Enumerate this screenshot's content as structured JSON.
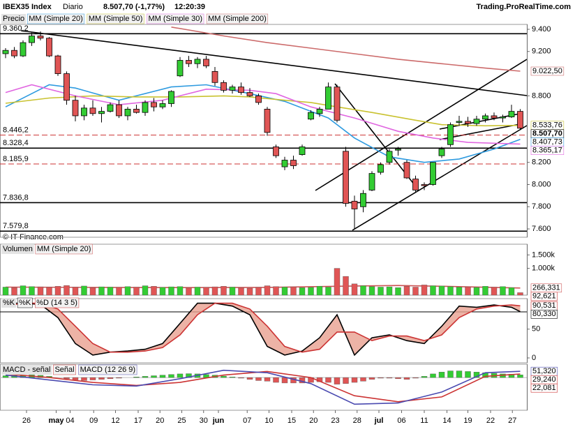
{
  "header": {
    "symbol": "IBEX35 Index",
    "period": "Diario",
    "last": "8.507,70 (-1,77%)",
    "time": "12:20:39",
    "source": "Trading.ProRealTime.com",
    "copyright": "© IT-Finance.com"
  },
  "chart_data": [
    {
      "type": "candlestick",
      "name": "Precio",
      "xlim": [
        -0.64,
        59.76
      ],
      "ylim": [
        7525,
        9444
      ],
      "up_color": "#33cc33",
      "down_color": "#e05555",
      "open": [
        9180,
        9210,
        9160,
        9280,
        9340,
        9320,
        9160,
        9000,
        8760,
        8620,
        8690,
        8640,
        8660,
        8720,
        8620,
        8680,
        8650,
        8740,
        8700,
        8730,
        8980,
        9120,
        9090,
        9130,
        9020,
        8920,
        8850,
        8880,
        8830,
        8800,
        8680,
        8340,
        8160,
        8220,
        8270,
        8590,
        8640,
        8680,
        8880,
        8300,
        7850,
        7800,
        7950,
        8110,
        8200,
        8310,
        8200,
        8050,
        8000,
        8000,
        8260,
        8360,
        8560,
        8570,
        8550,
        8590,
        8620,
        8600,
        8610,
        8660
      ],
      "high": [
        9230,
        9240,
        9300,
        9370,
        9380,
        9330,
        9170,
        9020,
        8800,
        8720,
        8760,
        8700,
        8740,
        8760,
        8700,
        8720,
        8760,
        8780,
        8760,
        8850,
        9150,
        9160,
        9150,
        9160,
        9060,
        8940,
        8900,
        8920,
        8870,
        8820,
        8700,
        8360,
        8250,
        8260,
        8360,
        8670,
        8700,
        8920,
        8900,
        8340,
        7900,
        7950,
        8120,
        8200,
        8320,
        8340,
        8220,
        8080,
        8020,
        8200,
        8340,
        8560,
        8620,
        8610,
        8620,
        8640,
        8650,
        8630,
        8720,
        8680
      ],
      "low": [
        9140,
        9140,
        9150,
        9250,
        9300,
        9150,
        8980,
        8720,
        8570,
        8580,
        8620,
        8560,
        8650,
        8600,
        8580,
        8640,
        8620,
        8660,
        8680,
        8700,
        8970,
        9060,
        9050,
        9050,
        8890,
        8830,
        8820,
        8810,
        8790,
        8720,
        8440,
        8240,
        8130,
        8140,
        8260,
        8580,
        8610,
        8690,
        8560,
        7800,
        7600,
        7750,
        7940,
        8090,
        8180,
        8260,
        8050,
        7930,
        7950,
        7990,
        8240,
        8340,
        8530,
        8520,
        8530,
        8560,
        8580,
        8560,
        8600,
        8490
      ],
      "close": [
        9210,
        9160,
        9280,
        9340,
        9320,
        9160,
        9000,
        8760,
        8620,
        8690,
        8640,
        8660,
        8720,
        8620,
        8680,
        8650,
        8740,
        8700,
        8730,
        8840,
        9120,
        9090,
        9130,
        9070,
        8920,
        8850,
        8880,
        8830,
        8800,
        8740,
        8470,
        8260,
        8220,
        8170,
        8340,
        8650,
        8680,
        8880,
        8580,
        7830,
        7780,
        7920,
        8100,
        8180,
        8300,
        8320,
        8060,
        7950,
        7990,
        8200,
        8320,
        8540,
        8570,
        8550,
        8590,
        8620,
        8600,
        8610,
        8660,
        8507.7
      ],
      "close_label": "8.507,70",
      "series": [
        {
          "name": "MM (Simple 20)",
          "color": "#2f9be0",
          "x": [
            0,
            5,
            8,
            13,
            19,
            23,
            28,
            32,
            37,
            40,
            44,
            48,
            52,
            56,
            59
          ],
          "values": [
            8700,
            8900,
            8870,
            8760,
            8880,
            8900,
            8820,
            8750,
            8600,
            8420,
            8250,
            8200,
            8230,
            8320,
            8407.73
          ],
          "end_label": "8.407,73"
        },
        {
          "name": "MM (Simple 50)",
          "color": "#c9c230",
          "x": [
            0,
            5,
            10,
            15,
            20,
            25,
            28,
            32,
            35,
            38,
            42,
            47,
            50,
            55,
            59
          ],
          "values": [
            8733,
            8780,
            8800,
            8790,
            8790,
            8800,
            8790,
            8760,
            8740,
            8700,
            8650,
            8580,
            8540,
            8530,
            8533.76
          ],
          "end_label": "8.533,76"
        },
        {
          "name": "MM (Simple 30)",
          "color": "#e066e0",
          "x": [
            0,
            3,
            8,
            13,
            18,
            23,
            28,
            31,
            35,
            40,
            45,
            49,
            53,
            59
          ],
          "values": [
            8830,
            8900,
            8800,
            8720,
            8760,
            8860,
            8850,
            8820,
            8700,
            8600,
            8480,
            8420,
            8380,
            8365.17
          ],
          "end_label": "8.365,17"
        },
        {
          "name": "MM (Simple 200)",
          "color": "#cc6b6b",
          "x": [
            19,
            25,
            30,
            35,
            40,
            45,
            50,
            55,
            59
          ],
          "values": [
            9420,
            9340,
            9280,
            9230,
            9180,
            9130,
            9090,
            9050,
            9022.5
          ],
          "end_label": "9.022,50"
        }
      ],
      "levels": [
        {
          "value": 9360.2,
          "label": "9.360,2",
          "style": "solid",
          "color": "#000000"
        },
        {
          "value": 8446.2,
          "label": "8.446,2",
          "style": "dashed",
          "color": "#cc3333"
        },
        {
          "value": 8328.4,
          "label": "8.328,4",
          "style": "solid",
          "color": "#000000"
        },
        {
          "value": 8185.9,
          "label": "8.185,9",
          "style": "dashed",
          "color": "#cc3333"
        },
        {
          "value": 7836.8,
          "label": "7.836,8",
          "style": "solid",
          "color": "#000000"
        },
        {
          "value": 7579.8,
          "label": "7.579,8",
          "style": "solid",
          "color": "#000000"
        }
      ],
      "yticks": [
        {
          "value": 9400,
          "label": "9.400"
        },
        {
          "value": 9200,
          "label": "9.200"
        },
        {
          "value": 8800,
          "label": "8.800"
        },
        {
          "value": 8200,
          "label": "8.200"
        },
        {
          "value": 8000,
          "label": "8.000"
        },
        {
          "value": 7800,
          "label": "7.800"
        },
        {
          "value": 7600,
          "label": "7.600"
        }
      ]
    },
    {
      "type": "bar",
      "name": "Volumen",
      "xlim": [
        -0.64,
        59.76
      ],
      "ylim": [
        0,
        1900
      ],
      "values": [
        300,
        280,
        350,
        320,
        310,
        290,
        330,
        360,
        300,
        340,
        280,
        310,
        300,
        290,
        320,
        300,
        350,
        330,
        290,
        310,
        320,
        280,
        300,
        290,
        310,
        330,
        300,
        280,
        260,
        290,
        350,
        320,
        300,
        310,
        280,
        290,
        330,
        300,
        1000,
        700,
        420,
        350,
        320,
        300,
        310,
        280,
        330,
        300,
        380,
        350,
        340,
        320,
        300,
        310,
        290,
        330,
        300,
        320,
        280,
        92.621
      ],
      "last_label": "92,621",
      "series": [
        {
          "name": "MM (Simple 20)",
          "color": "#cc5555",
          "x": [
            0,
            10,
            20,
            30,
            38,
            45,
            50,
            59
          ],
          "values": [
            300,
            290,
            280,
            290,
            330,
            360,
            330,
            266.331
          ],
          "end_label": "266,331"
        }
      ],
      "yticks": [
        {
          "value": 1500,
          "label": "1.500k"
        },
        {
          "value": 1000,
          "label": "1.000k"
        }
      ]
    },
    {
      "type": "line",
      "name": "%K",
      "xlim": [
        -0.64,
        59.76
      ],
      "ylim": [
        -8.5,
        103
      ],
      "fill_between": "#e8a090",
      "series": [
        {
          "name": "%K",
          "color": "#000000",
          "x": [
            0,
            2,
            4,
            6,
            8,
            10,
            12,
            14,
            16,
            18,
            20,
            22,
            24,
            26,
            28,
            30,
            32,
            34,
            36,
            38,
            40,
            42,
            44,
            46,
            48,
            50,
            52,
            54,
            56,
            58,
            59
          ],
          "values": [
            95,
            95,
            93,
            70,
            25,
            5,
            10,
            12,
            15,
            25,
            60,
            95,
            95,
            90,
            75,
            20,
            5,
            12,
            35,
            75,
            5,
            35,
            40,
            30,
            25,
            55,
            90,
            88,
            92,
            88,
            80.33
          ],
          "end_label": "80,330"
        },
        {
          "name": "%D (14 3 5)",
          "color": "#cc3333",
          "x": [
            0,
            2,
            4,
            6,
            8,
            10,
            12,
            14,
            16,
            18,
            20,
            22,
            24,
            26,
            28,
            30,
            32,
            34,
            36,
            38,
            40,
            42,
            44,
            46,
            48,
            50,
            52,
            54,
            56,
            58,
            59
          ],
          "values": [
            90,
            95,
            95,
            85,
            55,
            25,
            10,
            10,
            12,
            18,
            40,
            75,
            95,
            95,
            85,
            55,
            20,
            10,
            15,
            45,
            45,
            30,
            38,
            38,
            30,
            40,
            70,
            85,
            90,
            92,
            90.531
          ],
          "end_label": "90,531"
        }
      ],
      "levels": [
        80
      ],
      "yticks": [
        50,
        0
      ]
    },
    {
      "type": "macd",
      "name": "MACD - señal",
      "xlim": [
        -0.64,
        59.76
      ],
      "ylim": [
        -270,
        110
      ],
      "histogram_color": "#33cc33",
      "histogram_down_color": "#e05555",
      "histogram_end_label": "22,081",
      "histogram": [
        15,
        18,
        20,
        22,
        18,
        10,
        0,
        -10,
        -20,
        -25,
        -20,
        -15,
        -10,
        -5,
        0,
        5,
        10,
        15,
        20,
        25,
        30,
        32,
        30,
        25,
        20,
        12,
        5,
        -5,
        -15,
        -25,
        -30,
        -40,
        -45,
        -45,
        -45,
        -40,
        -35,
        -40,
        -55,
        -50,
        -40,
        -30,
        -15,
        -5,
        -5,
        -10,
        -15,
        -5,
        10,
        30,
        45,
        55,
        55,
        50,
        45,
        40,
        35,
        30,
        28,
        22.081
      ],
      "series": [
        {
          "name": "Señal",
          "color": "#cc3333",
          "x": [
            0,
            5,
            10,
            15,
            20,
            25,
            30,
            35,
            40,
            45,
            50,
            55,
            59
          ],
          "values": [
            30,
            0,
            -40,
            -65,
            -40,
            20,
            50,
            0,
            -150,
            -200,
            -160,
            10,
            29.24
          ],
          "end_label": "29,240"
        },
        {
          "name": "MACD (12 26 9)",
          "color": "#4a4ab0",
          "x": [
            0,
            5,
            10,
            15,
            20,
            25,
            30,
            35,
            40,
            45,
            50,
            55,
            59
          ],
          "values": [
            20,
            -20,
            -60,
            -70,
            -10,
            60,
            40,
            -50,
            -220,
            -210,
            -120,
            40,
            51.32
          ],
          "end_label": "51,320"
        }
      ],
      "xticks": [
        {
          "value": 2.4,
          "label": "26"
        },
        {
          "value": 5.8,
          "label": "may"
        },
        {
          "value": 7.4,
          "label": "04"
        },
        {
          "value": 10.1,
          "label": "09"
        },
        {
          "value": 12.6,
          "label": "12"
        },
        {
          "value": 15.2,
          "label": "17"
        },
        {
          "value": 17.7,
          "label": "20"
        },
        {
          "value": 20.2,
          "label": "25"
        },
        {
          "value": 22.7,
          "label": "30"
        },
        {
          "value": 24.4,
          "label": "jun"
        },
        {
          "value": 27.7,
          "label": "07"
        },
        {
          "value": 30.2,
          "label": "10"
        },
        {
          "value": 32.8,
          "label": "15"
        },
        {
          "value": 35.3,
          "label": "20"
        },
        {
          "value": 37.8,
          "label": "23"
        },
        {
          "value": 40.3,
          "label": "28"
        },
        {
          "value": 42.8,
          "label": "jul"
        },
        {
          "value": 45.4,
          "label": "06"
        },
        {
          "value": 48,
          "label": "11"
        },
        {
          "value": 50.6,
          "label": "14"
        },
        {
          "value": 53,
          "label": "19"
        },
        {
          "value": 55.6,
          "label": "22"
        },
        {
          "value": 58.1,
          "label": "27"
        }
      ]
    }
  ]
}
